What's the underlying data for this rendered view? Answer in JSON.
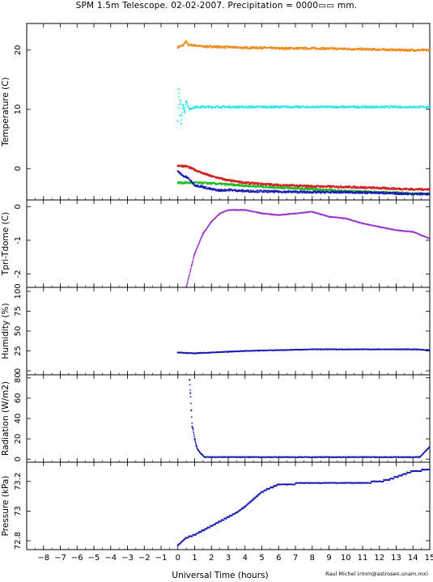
{
  "title": "SPM 1.5m Telescope. 02-02-2007. Precipitation = 0000▭▭ mm.",
  "credit": "Raul Michel (rmm@astrosen.unam.mx)",
  "colors": {
    "orange": "#f08a1c",
    "cyan": "#33e6ee",
    "red": "#d01f1f",
    "green": "#22bb22",
    "blue": "#1a1ab4",
    "purple": "#9a33cc"
  },
  "chart_data": [
    {
      "type": "scatter",
      "ylabel": "Temperature (C)",
      "xlim": [
        -9,
        15
      ],
      "ylim": [
        -5.3,
        24.5
      ],
      "yticks": [
        0,
        10,
        20
      ],
      "series": [
        {
          "color_key": "orange",
          "x": [
            0,
            0.3,
            0.5,
            0.6,
            1,
            1.5,
            2,
            3,
            4,
            5,
            6,
            8,
            10,
            12,
            13.5,
            15
          ],
          "y": [
            20.5,
            20.8,
            21.5,
            20.9,
            20.8,
            20.6,
            20.6,
            20.5,
            20.4,
            20.4,
            20.3,
            20.3,
            20.2,
            20.1,
            20.0,
            20.0
          ]
        },
        {
          "color_key": "cyan",
          "x": [
            0,
            0.05,
            0.1,
            0.15,
            0.2,
            0.3,
            0.4,
            0.5,
            0.7,
            1,
            15
          ],
          "y": [
            8,
            13.4,
            9,
            11.5,
            7.6,
            10.8,
            9.6,
            11.4,
            10,
            10.4,
            10.4
          ]
        },
        {
          "color_key": "red",
          "x": [
            0,
            0.5,
            1,
            1.5,
            2,
            3,
            4,
            6,
            8,
            10,
            12,
            14,
            15
          ],
          "y": [
            0.5,
            0.4,
            -0.2,
            -0.8,
            -1.3,
            -2,
            -2.4,
            -2.8,
            -3,
            -3.1,
            -3.3,
            -3.5,
            -3.5
          ]
        },
        {
          "color_key": "green",
          "x": [
            0,
            1,
            2,
            3,
            4,
            6,
            8,
            10,
            12,
            14,
            15
          ],
          "y": [
            -2.4,
            -2.4,
            -2.5,
            -2.7,
            -2.9,
            -3.2,
            -3.5,
            -3.8,
            -4,
            -4.2,
            -4.3
          ]
        },
        {
          "color_key": "blue",
          "x": [
            0,
            0.3,
            0.6,
            1,
            1.5,
            2,
            2.5,
            3,
            4,
            6,
            8,
            10,
            12,
            14,
            15
          ],
          "y": [
            -0.5,
            -1.2,
            -1.6,
            -2.8,
            -3.1,
            -3.5,
            -3.7,
            -3.6,
            -3.8,
            -3.9,
            -4.0,
            -4.0,
            -4.1,
            -4.3,
            -4.3
          ]
        }
      ]
    },
    {
      "type": "scatter",
      "ylabel": "Tpri-Tdome (C)",
      "xlim": [
        -9,
        15
      ],
      "ylim": [
        -2.4,
        0.2
      ],
      "yticks": [
        -2,
        -1,
        0
      ],
      "series": [
        {
          "color_key": "purple",
          "x": [
            0.5,
            1,
            1.5,
            2,
            2.5,
            3,
            4,
            5,
            6,
            7,
            8,
            9,
            10,
            11,
            12,
            13,
            14,
            15
          ],
          "y": [
            -2.4,
            -1.4,
            -0.8,
            -0.45,
            -0.2,
            -0.1,
            -0.1,
            -0.2,
            -0.25,
            -0.2,
            -0.15,
            -0.3,
            -0.35,
            -0.5,
            -0.6,
            -0.7,
            -0.75,
            -0.95
          ]
        }
      ]
    },
    {
      "type": "line",
      "ylabel": "Humidity (%)",
      "xlim": [
        -9,
        15
      ],
      "ylim": [
        -5,
        105
      ],
      "yticks": [
        0,
        25,
        50,
        75,
        100
      ],
      "series": [
        {
          "color_key": "blue",
          "x": [
            0,
            1,
            2,
            3,
            4,
            6,
            8,
            10,
            12,
            14,
            15
          ],
          "y": [
            23,
            22,
            23,
            24,
            25,
            26,
            27,
            27,
            27,
            27,
            26
          ]
        }
      ]
    },
    {
      "type": "scatter",
      "ylabel": "Radiation (W/m2)",
      "xlim": [
        -9,
        15
      ],
      "ylim": [
        -3,
        83
      ],
      "yticks": [
        0,
        20,
        40,
        60,
        80
      ],
      "series": [
        {
          "color_key": "blue",
          "x": [
            0.7,
            0.75,
            0.8,
            0.85,
            0.9,
            1.0,
            1.1,
            1.2,
            1.4,
            1.6,
            3,
            6,
            9,
            12,
            14.4,
            15
          ],
          "y": [
            78,
            65,
            48,
            32,
            30,
            20,
            13,
            9,
            5,
            2,
            2,
            2,
            2,
            2,
            2,
            12
          ]
        }
      ]
    },
    {
      "type": "scatter",
      "ylabel": "Pressure (kPa)",
      "xlim": [
        -9,
        15
      ],
      "ylim": [
        72.74,
        73.33
      ],
      "yticks": [
        72.8,
        73,
        73.2
      ],
      "yticklabels": [
        "72.8",
        "73",
        "73.2"
      ],
      "series": [
        {
          "color_key": "blue",
          "x": [
            0,
            0.5,
            1,
            1.5,
            2,
            2.5,
            3,
            3.5,
            4,
            4.5,
            5,
            6,
            8,
            10,
            11,
            12,
            12.5,
            13,
            13.5,
            14,
            15
          ],
          "y": [
            72.77,
            72.82,
            72.84,
            72.87,
            72.9,
            72.93,
            72.96,
            72.99,
            73.03,
            73.08,
            73.13,
            73.18,
            73.19,
            73.19,
            73.19,
            73.2,
            73.21,
            73.23,
            73.25,
            73.27,
            73.28
          ]
        }
      ]
    }
  ],
  "x_axis": {
    "label": "Universal Time (hours)",
    "ticks": [
      -8,
      -7,
      -6,
      -5,
      -4,
      -3,
      -2,
      -1,
      0,
      1,
      2,
      3,
      4,
      5,
      6,
      7,
      8,
      9,
      10,
      11,
      12,
      13,
      14,
      15
    ]
  }
}
